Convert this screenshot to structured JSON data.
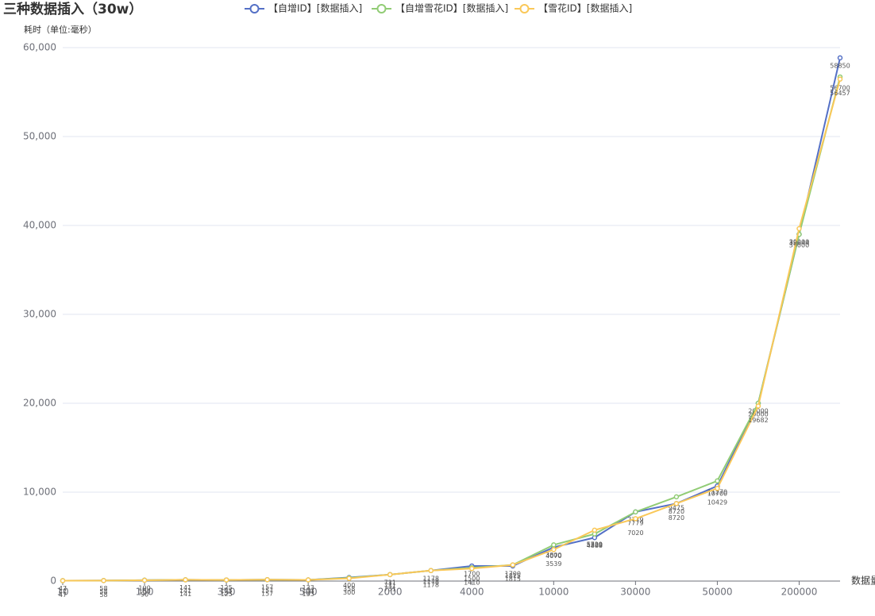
{
  "chart_data": {
    "type": "line",
    "title": "三种数据插入（30w）",
    "y_label": "耗时（单位:毫秒）",
    "x_label": "数据量",
    "categories": [
      "10",
      null,
      "150",
      null,
      "350",
      null,
      "500",
      null,
      "2000",
      null,
      "4000",
      null,
      "10000",
      null,
      "30000",
      null,
      "50000",
      null,
      "200000",
      null
    ],
    "series": [
      {
        "name": "【自增ID】[数据插入]",
        "color": "#5470c6",
        "values": [
          47,
          58,
          100,
          141,
          125,
          157,
          133,
          400,
          731,
          1178,
          1700,
          1700,
          3800,
          4888,
          7779,
          8720,
          10700,
          20000,
          39000,
          58850
        ]
      },
      {
        "name": "【自增雪花ID】[数据插入]",
        "color": "#91cc75",
        "values": [
          47,
          58,
          100,
          141,
          125,
          157,
          133,
          358,
          731,
          1178,
          1500,
          1815,
          4070,
          5300,
          7779,
          9475,
          11270,
          20000,
          39000,
          56700
        ]
      },
      {
        "name": "【雪花ID】[数据插入]",
        "color": "#fac858",
        "values": [
          47,
          58,
          90,
          141,
          125,
          157,
          133,
          300,
          731,
          1178,
          1410,
          1815,
          3539,
          5729,
          7020,
          8720,
          10429,
          19682,
          39644,
          56457
        ]
      }
    ],
    "ylim": [
      0,
      60000
    ],
    "yticks": [
      0,
      {
        "value": 10000,
        "label": "10,000"
      },
      {
        "value": 20000,
        "label": "20,000"
      },
      {
        "value": 30000,
        "label": "30,000"
      },
      {
        "value": 40000,
        "label": "40,000"
      },
      {
        "value": 50000,
        "label": "50,000"
      },
      {
        "value": 60000,
        "label": "60,000"
      }
    ],
    "grid": true
  }
}
